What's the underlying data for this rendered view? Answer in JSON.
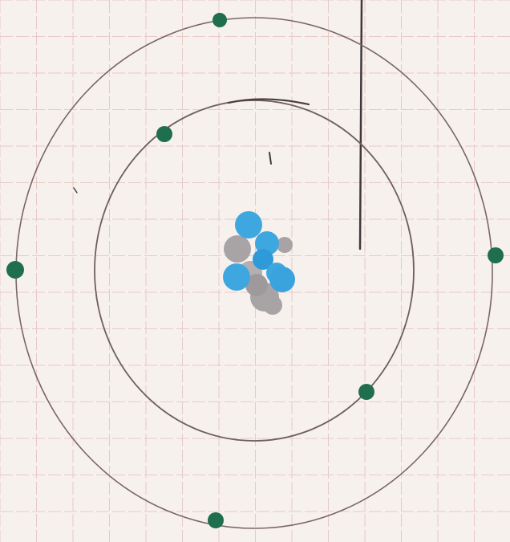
{
  "drawing": {
    "subject": "",
    "paper_color": "#f7f1ee",
    "grid_color": "#e9c8c4",
    "orbit_color": "#7a6664",
    "pencil_mark_color": "#3e3a3c",
    "electron_color": "#1f6e4d",
    "proton_color": "#3fa7e0",
    "neutron_color": "#a8a4a6",
    "inner_shell_electron_count": 2,
    "outer_shell_electron_count": 4,
    "nucleus_proton_count": 6,
    "nucleus_neutron_count": 6
  }
}
